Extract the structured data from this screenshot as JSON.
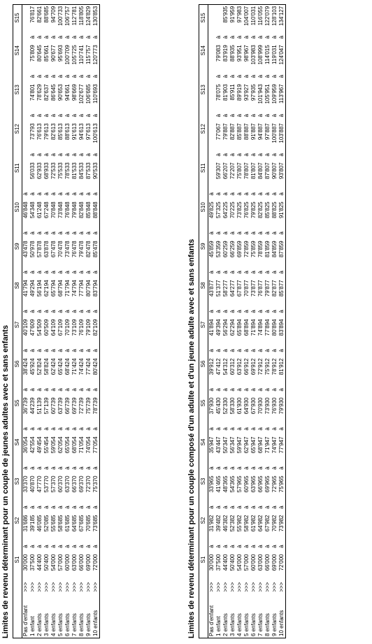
{
  "headers": [
    "S1",
    "S2",
    "S3",
    "S4",
    "S5",
    "S6",
    "S7",
    "S8",
    "S9",
    "S10",
    "S11",
    "S12",
    "S13",
    "S14",
    "S15"
  ],
  "sep": "à",
  "table1": {
    "title": "Limites de revenu déterminant pour un couple de jeunes adultes avec et sans enfants",
    "rows": [
      {
        "label": "Pas d'enfant",
        "mark": ">>>",
        "values": [
          "30'000",
          "31'686",
          "33'370",
          "36'054",
          "36'739",
          "38'424",
          "40'109",
          "41'794",
          "43'478",
          "46'848",
          "",
          "",
          "",
          "",
          ""
        ]
      },
      {
        "label": "1 enfant",
        "mark": ">>>",
        "values": [
          "37'500",
          "39'185",
          "40'870",
          "42'554",
          "44'239",
          "45'924",
          "47'609",
          "49'294",
          "50'978",
          "54'348",
          "56'033",
          "73'793",
          "74'801",
          "75'809",
          "76'817"
        ]
      },
      {
        "label": "2 enfants",
        "mark": ">>>",
        "values": [
          "44'400",
          "46'085",
          "47'770",
          "49'454",
          "51'139",
          "52'824",
          "54'509",
          "56'194",
          "57'878",
          "61'248",
          "62'933",
          "76'613",
          "78'629",
          "80'645",
          "82'661"
        ]
      },
      {
        "label": "3 enfants",
        "mark": ">>>",
        "values": [
          "50'400",
          "52'085",
          "53'770",
          "55'454",
          "57'139",
          "58'824",
          "60'509",
          "62'194",
          "63'878",
          "67'248",
          "68'933",
          "79'613",
          "82'637",
          "85'661",
          "88'685"
        ]
      },
      {
        "label": "4 enfants",
        "mark": ">>>",
        "values": [
          "54'000",
          "55'685",
          "57'370",
          "59'054",
          "60'739",
          "62'424",
          "64'109",
          "65'794",
          "67'478",
          "70'848",
          "72'533",
          "82'613",
          "86'645",
          "90'677",
          "94'709"
        ]
      },
      {
        "label": "5 enfants",
        "mark": ">>>",
        "values": [
          "57'000",
          "58'685",
          "60'370",
          "62'054",
          "63'739",
          "65'424",
          "67'109",
          "68'794",
          "70'478",
          "73'848",
          "75'533",
          "85'613",
          "90'653",
          "95'693",
          "100'733"
        ]
      },
      {
        "label": "6 enfants",
        "mark": ">>>",
        "values": [
          "60'000",
          "61'685",
          "63'370",
          "65'054",
          "66'739",
          "68'424",
          "70'109",
          "71'794",
          "73'478",
          "76'848",
          "78'533",
          "88'613",
          "94'661",
          "100'709",
          "106'757"
        ]
      },
      {
        "label": "7 enfants",
        "mark": ">>>",
        "values": [
          "63'000",
          "64'685",
          "66'370",
          "68'054",
          "69'739",
          "71'424",
          "73'109",
          "74'794",
          "76'478",
          "79'848",
          "81'533",
          "91'613",
          "98'669",
          "105'725",
          "112'781"
        ]
      },
      {
        "label": "8 enfants",
        "mark": ">>>",
        "values": [
          "66'000",
          "67'685",
          "69'370",
          "71'054",
          "72'739",
          "74'424",
          "76'109",
          "77'794",
          "79'478",
          "82'848",
          "84'533",
          "94'613",
          "102'677",
          "110'741",
          "118'805"
        ]
      },
      {
        "label": "9 enfants",
        "mark": ">>>",
        "values": [
          "69'000",
          "70'685",
          "72'370",
          "74'054",
          "75'739",
          "77'424",
          "79'109",
          "80'794",
          "82'478",
          "85'848",
          "87'533",
          "97'613",
          "106'685",
          "115'757",
          "124'829"
        ]
      },
      {
        "label": "10 enfants",
        "mark": ">>>",
        "values": [
          "72'000",
          "73'685",
          "75'370",
          "77'054",
          "78'739",
          "80'424",
          "82'109",
          "83'794",
          "85'478",
          "88'848",
          "90'533",
          "100'613",
          "110'693",
          "120'773",
          "130'853"
        ]
      }
    ]
  },
  "table2": {
    "title": "Limites de revenu déterminant pour un couple composé d'un adulte et d'un jeune adulte avec et sans enfants",
    "rows": [
      {
        "label": "Pas d'enfant",
        "mark": ">>>",
        "values": [
          "30'000",
          "31'982",
          "33'965",
          "35'947",
          "37'930",
          "39'912",
          "41'894",
          "43'877",
          "45'859",
          "49'825",
          "",
          "",
          "",
          "",
          ""
        ]
      },
      {
        "label": "1 enfant",
        "mark": ">>>",
        "values": [
          "37'500",
          "39'482",
          "41'465",
          "43'447",
          "45'430",
          "47'412",
          "49'394",
          "51'377",
          "53'359",
          "57'325",
          "59'307",
          "77'067",
          "78'075",
          "79'083",
          ""
        ]
      },
      {
        "label": "2 enfants",
        "mark": ">>>",
        "values": [
          "44'400",
          "46'382",
          "48'365",
          "50'347",
          "52'330",
          "54'312",
          "56'294",
          "58'277",
          "60'259",
          "64'225",
          "66'207",
          "79'887",
          "81'903",
          "83'919",
          "85'935"
        ]
      },
      {
        "label": "3 enfants",
        "mark": ">>>",
        "values": [
          "50'400",
          "52'382",
          "54'365",
          "56'347",
          "58'330",
          "60'312",
          "62'294",
          "64'277",
          "66'259",
          "70'225",
          "72'207",
          "82'887",
          "85'911",
          "88'935",
          "91'959"
        ]
      },
      {
        "label": "4 enfants",
        "mark": ">>>",
        "values": [
          "54'000",
          "55'982",
          "57'965",
          "59'947",
          "61'930",
          "63'912",
          "65'894",
          "67'877",
          "69'859",
          "73'825",
          "75'807",
          "85'887",
          "89'919",
          "93'951",
          "97'983"
        ]
      },
      {
        "label": "5 enfants",
        "mark": ">>>",
        "values": [
          "57'000",
          "58'982",
          "60'965",
          "62'947",
          "64'930",
          "66'912",
          "68'894",
          "70'877",
          "72'859",
          "76'825",
          "78'807",
          "88'887",
          "93'927",
          "98'967",
          "104'007"
        ]
      },
      {
        "label": "6 enfants",
        "mark": ">>>",
        "values": [
          "60'000",
          "61'982",
          "63'965",
          "65'947",
          "67'930",
          "69'912",
          "71'894",
          "73'877",
          "75'859",
          "79'825",
          "81'807",
          "91'887",
          "97'935",
          "103'983",
          "110'031"
        ]
      },
      {
        "label": "7 enfants",
        "mark": ">>>",
        "values": [
          "63'000",
          "64'982",
          "66'965",
          "68'947",
          "70'930",
          "72'912",
          "74'894",
          "76'877",
          "78'859",
          "82'825",
          "84'807",
          "94'887",
          "101'943",
          "108'999",
          "116'055"
        ]
      },
      {
        "label": "8 enfants",
        "mark": ">>>",
        "values": [
          "66'000",
          "67'982",
          "69'965",
          "71'947",
          "73'930",
          "75'912",
          "77'894",
          "79'877",
          "81'859",
          "85'825",
          "87'807",
          "97'887",
          "105'951",
          "114'015",
          "122'079"
        ]
      },
      {
        "label": "9 enfants",
        "mark": ">>>",
        "values": [
          "69'000",
          "70'982",
          "72'965",
          "74'947",
          "76'930",
          "78'912",
          "80'894",
          "82'877",
          "84'859",
          "88'825",
          "90'807",
          "100'887",
          "109'959",
          "119'031",
          "128'103"
        ]
      },
      {
        "label": "10 enfants",
        "mark": ">>>",
        "values": [
          "72'000",
          "73'982",
          "75'965",
          "77'947",
          "79'930",
          "81'912",
          "83'894",
          "85'877",
          "87'859",
          "91'825",
          "93'807",
          "103'887",
          "113'967",
          "124'047",
          "134'127"
        ]
      }
    ]
  }
}
